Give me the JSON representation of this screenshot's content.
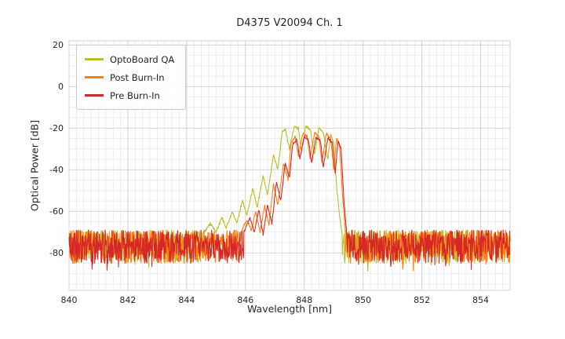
{
  "chart_data": {
    "type": "line",
    "title": "D4375 V20094 Ch. 1",
    "xlabel": "Wavelength [nm]",
    "ylabel": "Optical Power [dB]",
    "xlim": [
      840,
      855
    ],
    "ylim": [
      -98,
      22
    ],
    "x_ticks": [
      840,
      842,
      844,
      846,
      848,
      850,
      852,
      854
    ],
    "y_ticks": [
      20,
      0,
      -20,
      -40,
      -60,
      -80
    ],
    "x_minor_step": 0.25,
    "y_minor_step": 5,
    "grid": true,
    "legend_position": "upper-left",
    "noise_floor": {
      "top": -69,
      "bottom": -85,
      "spike_chance": 0.06,
      "spike_depth": 4
    },
    "series": [
      {
        "name": "OptoBoard QA",
        "color": "#bcbd22",
        "envelope": [
          [
            844.55,
            -71
          ],
          [
            844.8,
            -66
          ],
          [
            845.0,
            -70
          ],
          [
            845.2,
            -63
          ],
          [
            845.35,
            -68
          ],
          [
            845.55,
            -60
          ],
          [
            845.7,
            -66
          ],
          [
            845.9,
            -55
          ],
          [
            846.05,
            -62
          ],
          [
            846.25,
            -49
          ],
          [
            846.4,
            -58
          ],
          [
            846.6,
            -43
          ],
          [
            846.75,
            -52
          ],
          [
            846.95,
            -33
          ],
          [
            847.1,
            -40
          ],
          [
            847.25,
            -22
          ],
          [
            847.35,
            -20.5
          ],
          [
            847.5,
            -30
          ],
          [
            847.65,
            -19.5
          ],
          [
            847.8,
            -20
          ],
          [
            847.9,
            -31
          ],
          [
            848.05,
            -19
          ],
          [
            848.2,
            -20.5
          ],
          [
            848.35,
            -33
          ],
          [
            848.5,
            -19.5
          ],
          [
            848.65,
            -22
          ],
          [
            848.8,
            -35
          ],
          [
            848.9,
            -23
          ],
          [
            849.0,
            -27
          ],
          [
            849.1,
            -48
          ],
          [
            849.2,
            -62
          ],
          [
            849.3,
            -72
          ]
        ]
      },
      {
        "name": "Post Burn-In",
        "color": "#ff7f0e",
        "envelope": [
          [
            845.85,
            -70
          ],
          [
            846.05,
            -64
          ],
          [
            846.2,
            -69
          ],
          [
            846.35,
            -60
          ],
          [
            846.5,
            -70
          ],
          [
            846.65,
            -57
          ],
          [
            846.8,
            -67
          ],
          [
            846.95,
            -47
          ],
          [
            847.1,
            -57
          ],
          [
            847.3,
            -37
          ],
          [
            847.45,
            -45
          ],
          [
            847.55,
            -27
          ],
          [
            847.7,
            -24
          ],
          [
            847.8,
            -34
          ],
          [
            847.95,
            -22.5
          ],
          [
            848.1,
            -24
          ],
          [
            848.2,
            -35
          ],
          [
            848.35,
            -22
          ],
          [
            848.5,
            -24
          ],
          [
            848.6,
            -37
          ],
          [
            848.75,
            -22.5
          ],
          [
            848.9,
            -25
          ],
          [
            849.0,
            -40
          ],
          [
            849.1,
            -25
          ],
          [
            849.2,
            -28
          ],
          [
            849.3,
            -52
          ],
          [
            849.4,
            -70
          ]
        ]
      },
      {
        "name": "Pre Burn-In",
        "color": "#d62728",
        "envelope": [
          [
            845.95,
            -70
          ],
          [
            846.15,
            -63
          ],
          [
            846.3,
            -70
          ],
          [
            846.45,
            -59
          ],
          [
            846.6,
            -71
          ],
          [
            846.75,
            -57
          ],
          [
            846.9,
            -66
          ],
          [
            847.05,
            -46
          ],
          [
            847.2,
            -55
          ],
          [
            847.35,
            -37
          ],
          [
            847.5,
            -44
          ],
          [
            847.6,
            -28
          ],
          [
            847.75,
            -25.5
          ],
          [
            847.85,
            -35
          ],
          [
            848.0,
            -24
          ],
          [
            848.15,
            -26
          ],
          [
            848.25,
            -37
          ],
          [
            848.4,
            -24.5
          ],
          [
            848.55,
            -26
          ],
          [
            848.65,
            -39
          ],
          [
            848.8,
            -24.5
          ],
          [
            848.95,
            -27
          ],
          [
            849.05,
            -42
          ],
          [
            849.15,
            -26
          ],
          [
            849.25,
            -30
          ],
          [
            849.35,
            -55
          ],
          [
            849.45,
            -72
          ]
        ]
      }
    ]
  }
}
